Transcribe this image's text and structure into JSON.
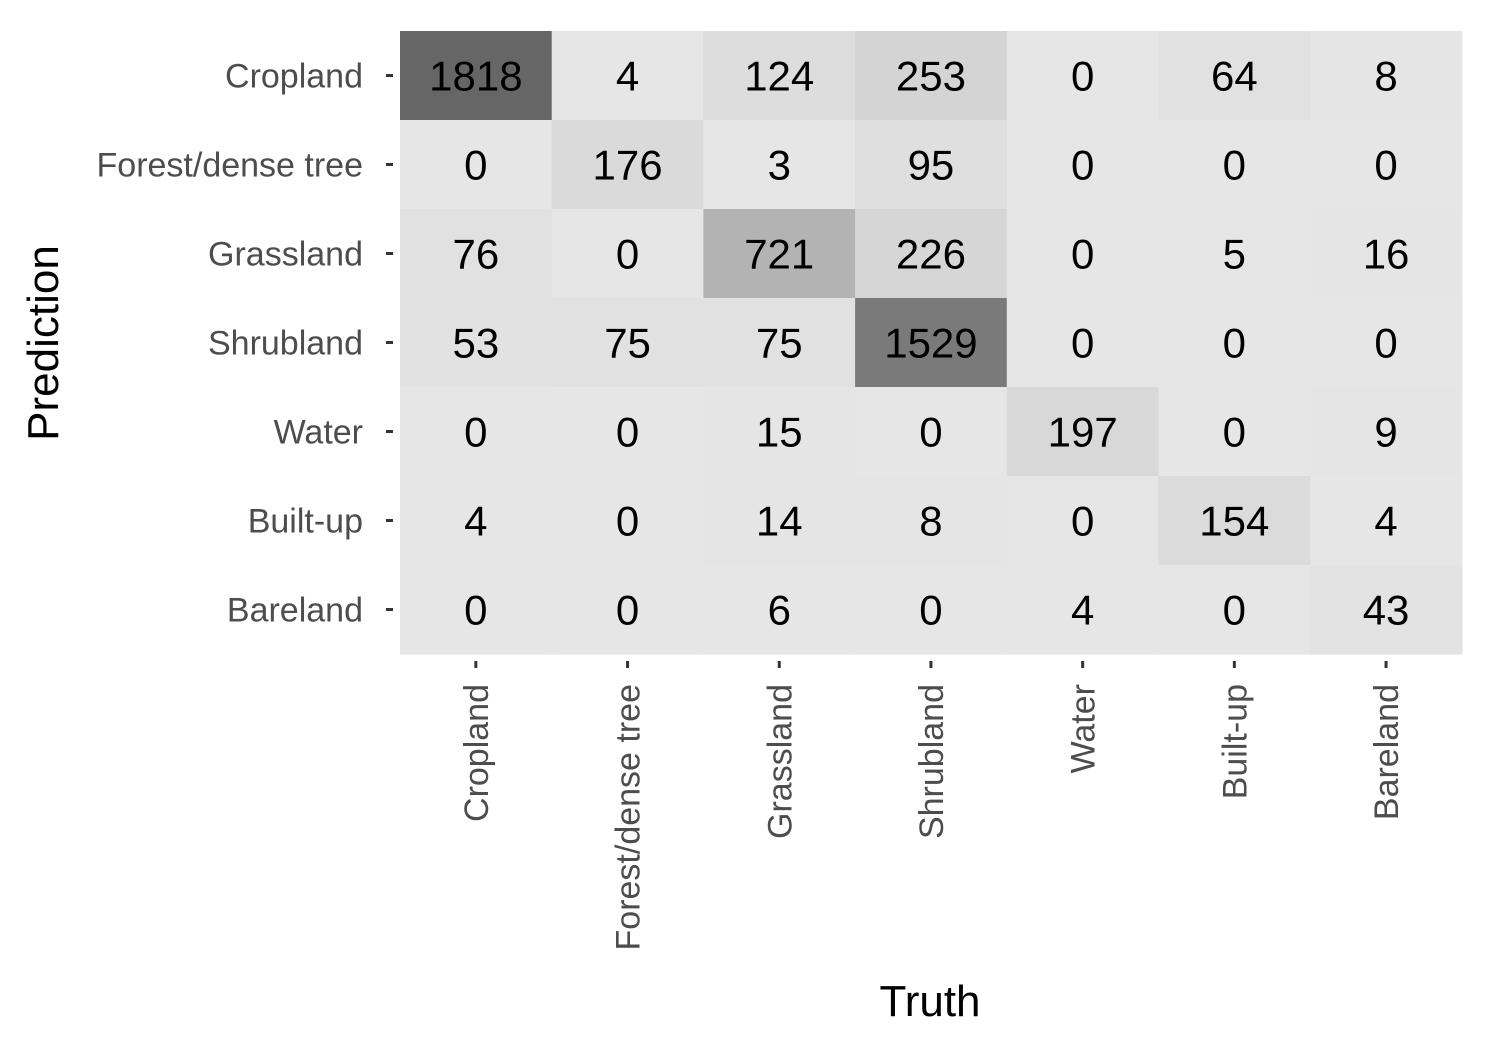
{
  "chart_data": {
    "type": "heatmap",
    "title": "",
    "xlabel": "Truth",
    "ylabel": "Prediction",
    "x_categories": [
      "Cropland",
      "Forest/dense tree",
      "Grassland",
      "Shrubland",
      "Water",
      "Built-up",
      "Bareland"
    ],
    "y_categories": [
      "Cropland",
      "Forest/dense tree",
      "Grassland",
      "Shrubland",
      "Water",
      "Built-up",
      "Bareland"
    ],
    "values": [
      [
        1818,
        4,
        124,
        253,
        0,
        64,
        8
      ],
      [
        0,
        176,
        3,
        95,
        0,
        0,
        0
      ],
      [
        76,
        0,
        721,
        226,
        0,
        5,
        16
      ],
      [
        53,
        75,
        75,
        1529,
        0,
        0,
        0
      ],
      [
        0,
        0,
        15,
        0,
        197,
        0,
        9
      ],
      [
        4,
        0,
        14,
        8,
        0,
        154,
        4
      ],
      [
        0,
        0,
        6,
        0,
        4,
        0,
        43
      ]
    ],
    "color_low": "#e6e6e6",
    "color_high": "#666666",
    "grid": false,
    "legend": "none"
  }
}
